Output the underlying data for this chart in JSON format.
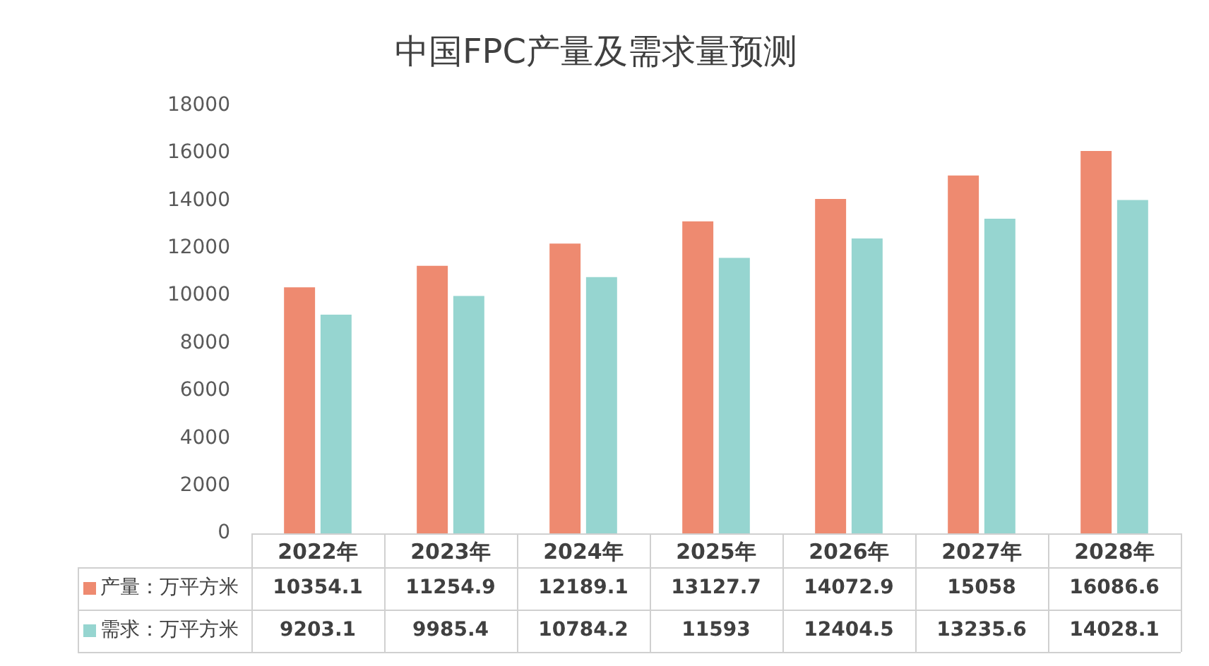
{
  "chart_data": {
    "type": "bar",
    "title": "中国FPC产量及需求量预测",
    "categories": [
      "2022年",
      "2023年",
      "2024年",
      "2025年",
      "2026年",
      "2027年",
      "2028年"
    ],
    "series": [
      {
        "name": "产量：万平方米",
        "color": "#ee8a70",
        "values": [
          10354.1,
          11254.9,
          12189.1,
          13127.7,
          14072.9,
          15058,
          16086.6
        ]
      },
      {
        "name": "需求：万平方米",
        "color": "#96d5d0",
        "values": [
          9203.1,
          9985.4,
          10784.2,
          11593,
          12404.5,
          13235.6,
          14028.1
        ]
      }
    ],
    "ylim": [
      0,
      18000
    ],
    "yticks": [
      0,
      2000,
      4000,
      6000,
      8000,
      10000,
      12000,
      14000,
      16000,
      18000
    ],
    "data_labels": true,
    "legend": "bottom left"
  }
}
